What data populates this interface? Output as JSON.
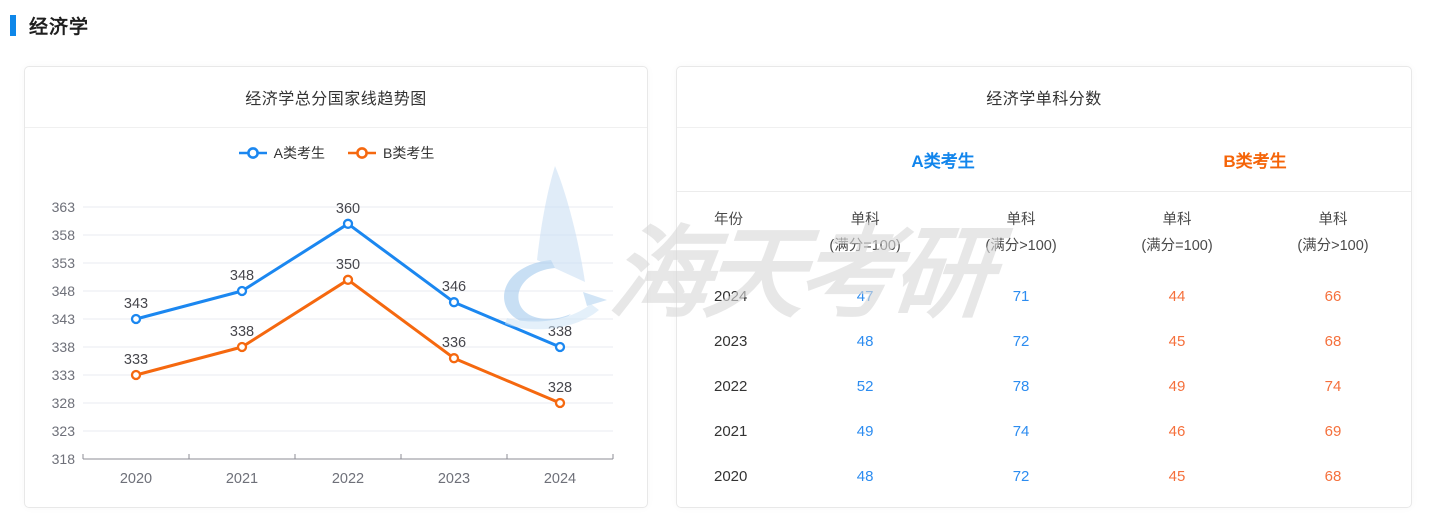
{
  "theme": {
    "accent_blue": "#0e87e9",
    "series_a_color": "#1b87f0",
    "series_b_color": "#f5680f",
    "value_a_color": "#2c8cf0",
    "value_b_color": "#f5703c",
    "group_a_color": "#1185ec",
    "group_b_color": "#f56408"
  },
  "header": {
    "section_title": "经济学"
  },
  "watermark": {
    "text": "海天考研",
    "logo": "haitian-sail-logo"
  },
  "chart_card": {
    "title": "经济学总分国家线趋势图",
    "legend": [
      {
        "label": "A类考生"
      },
      {
        "label": "B类考生"
      }
    ]
  },
  "chart_data": {
    "type": "line",
    "title": "经济学总分国家线趋势图",
    "categories": [
      "2020",
      "2021",
      "2022",
      "2023",
      "2024"
    ],
    "series": [
      {
        "name": "A类考生",
        "color": "#1b87f0",
        "values": [
          343,
          348,
          360,
          346,
          338
        ]
      },
      {
        "name": "B类考生",
        "color": "#f5680f",
        "values": [
          333,
          338,
          350,
          336,
          328
        ]
      }
    ],
    "ylim": [
      318,
      363
    ],
    "ytick_step": 5,
    "yticks": [
      318,
      323,
      328,
      333,
      338,
      343,
      348,
      353,
      358,
      363
    ],
    "grid": true,
    "legend_position": "top",
    "data_labels": true,
    "xlabel": "",
    "ylabel": ""
  },
  "table_card": {
    "title": "经济学单科分数",
    "group_headers": [
      {
        "label": "A类考生"
      },
      {
        "label": "B类考生"
      }
    ],
    "columns": {
      "year": "年份",
      "c1": {
        "line1": "单科",
        "line2": "(满分=100)"
      },
      "c2": {
        "line1": "单科",
        "line2": "(满分>100)"
      },
      "c3": {
        "line1": "单科",
        "line2": "(满分=100)"
      },
      "c4": {
        "line1": "单科",
        "line2": "(满分>100)"
      }
    },
    "rows": [
      {
        "year": "2024",
        "a_eq100": "47",
        "a_gt100": "71",
        "b_eq100": "44",
        "b_gt100": "66"
      },
      {
        "year": "2023",
        "a_eq100": "48",
        "a_gt100": "72",
        "b_eq100": "45",
        "b_gt100": "68"
      },
      {
        "year": "2022",
        "a_eq100": "52",
        "a_gt100": "78",
        "b_eq100": "49",
        "b_gt100": "74"
      },
      {
        "year": "2021",
        "a_eq100": "49",
        "a_gt100": "74",
        "b_eq100": "46",
        "b_gt100": "69"
      },
      {
        "year": "2020",
        "a_eq100": "48",
        "a_gt100": "72",
        "b_eq100": "45",
        "b_gt100": "68"
      }
    ]
  }
}
